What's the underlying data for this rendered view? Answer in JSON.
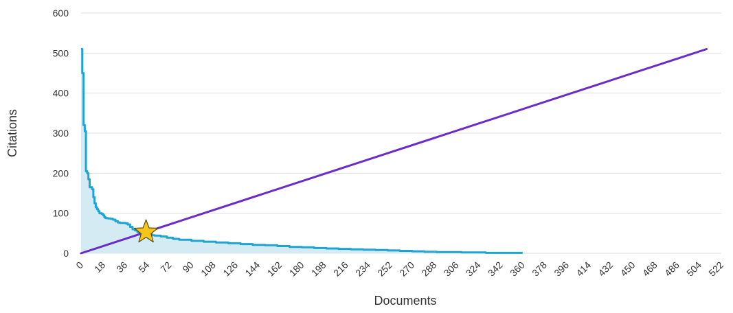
{
  "chart_data": {
    "type": "line",
    "title": "",
    "xlabel": "Documents",
    "ylabel": "Citations",
    "xlim": [
      0,
      522
    ],
    "ylim": [
      0,
      600
    ],
    "grid": true,
    "x_ticks": [
      "0",
      "18",
      "36",
      "54",
      "72",
      "90",
      "108",
      "126",
      "144",
      "162",
      "180",
      "198",
      "216",
      "234",
      "252",
      "270",
      "288",
      "306",
      "324",
      "342",
      "360",
      "378",
      "396",
      "414",
      "432",
      "450",
      "468",
      "486",
      "504",
      "522"
    ],
    "y_ticks": [
      "0",
      "100",
      "200",
      "300",
      "400",
      "500",
      "600"
    ],
    "colors": {
      "citations_line": "#1fa3d0",
      "citations_fill": "#d4ebf4",
      "h_line": "#6a2bc8",
      "star": "#f5c518",
      "grid": "#dddddd"
    },
    "series": [
      {
        "kind": "citations-per-document",
        "x": [
          0,
          1,
          2,
          3,
          4,
          5,
          6,
          7,
          8,
          9,
          10,
          11,
          12,
          13,
          14,
          15,
          16,
          17,
          18,
          19,
          20,
          22,
          24,
          26,
          28,
          30,
          32,
          34,
          36,
          38,
          40,
          42,
          44,
          46,
          48,
          50,
          52,
          54,
          56,
          58,
          60,
          65,
          70,
          75,
          80,
          90,
          100,
          110,
          120,
          130,
          140,
          150,
          160,
          170,
          180,
          190,
          200,
          210,
          220,
          230,
          240,
          250,
          260,
          270,
          280,
          290,
          300,
          310,
          320,
          330,
          340,
          350,
          360
        ],
        "y": [
          510,
          450,
          320,
          305,
          205,
          200,
          185,
          165,
          165,
          160,
          140,
          125,
          115,
          110,
          105,
          100,
          100,
          98,
          95,
          90,
          88,
          87,
          86,
          84,
          80,
          77,
          76,
          76,
          75,
          72,
          66,
          60,
          57,
          53,
          51,
          50,
          49,
          48,
          47,
          45,
          44,
          42,
          39,
          36,
          34,
          31,
          29,
          27,
          25,
          23,
          21,
          20,
          18,
          16,
          15,
          13,
          12,
          11,
          10,
          9,
          8,
          7,
          6,
          5,
          4,
          3,
          3,
          2,
          2,
          1,
          1,
          1,
          1
        ]
      },
      {
        "kind": "h-index-reference-line",
        "x": [
          0,
          510
        ],
        "y": [
          0,
          510
        ]
      }
    ],
    "h_index_marker": {
      "x": 53,
      "y": 53,
      "shape": "star"
    }
  }
}
